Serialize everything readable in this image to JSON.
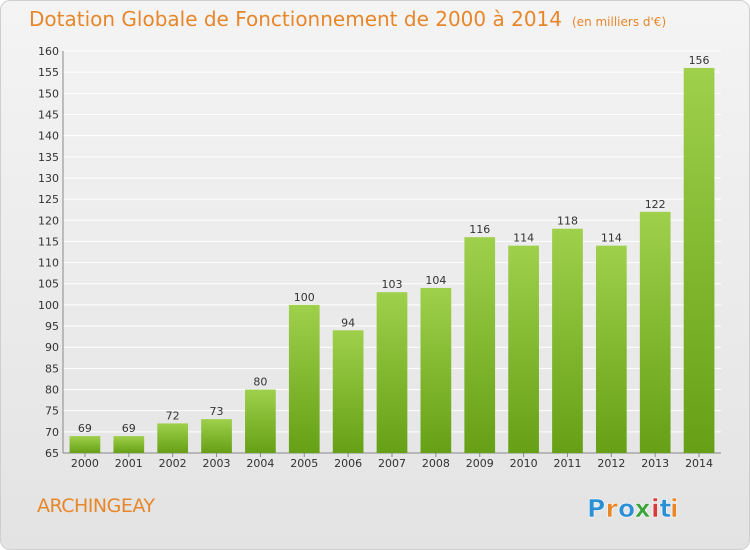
{
  "title": "Dotation Globale de Fonctionnement de 2000 à 2014",
  "subtitle": "(en milliers d'€)",
  "commune": "ARCHINGEAY",
  "logo": {
    "text": "Proxiti",
    "letters": [
      "P",
      "r",
      "o",
      "x",
      "i",
      "t",
      "i"
    ],
    "colors": [
      "#2b8fd6",
      "#e8862a",
      "#2b8fd6",
      "#3aa33a",
      "#d43c3c",
      "#2b8fd6",
      "#e8862a"
    ]
  },
  "colors": {
    "bar_top": "#9fd04c",
    "bar_bottom": "#66a016",
    "title": "#e8862a",
    "grid": "#ffffff"
  },
  "chart_data": {
    "type": "bar",
    "title": "Dotation Globale de Fonctionnement de 2000 à 2014",
    "subtitle": "(en milliers d'€)",
    "xlabel": "",
    "ylabel": "",
    "categories": [
      "2000",
      "2001",
      "2002",
      "2003",
      "2004",
      "2005",
      "2006",
      "2007",
      "2008",
      "2009",
      "2010",
      "2011",
      "2012",
      "2013",
      "2014"
    ],
    "values": [
      69,
      69,
      72,
      73,
      80,
      100,
      94,
      103,
      104,
      116,
      114,
      118,
      114,
      122,
      156
    ],
    "ylim": [
      65,
      160
    ],
    "yticks": [
      65,
      70,
      75,
      80,
      85,
      90,
      95,
      100,
      105,
      110,
      115,
      120,
      125,
      130,
      135,
      140,
      145,
      150,
      155,
      160
    ],
    "grid": true,
    "data_labels": true
  }
}
